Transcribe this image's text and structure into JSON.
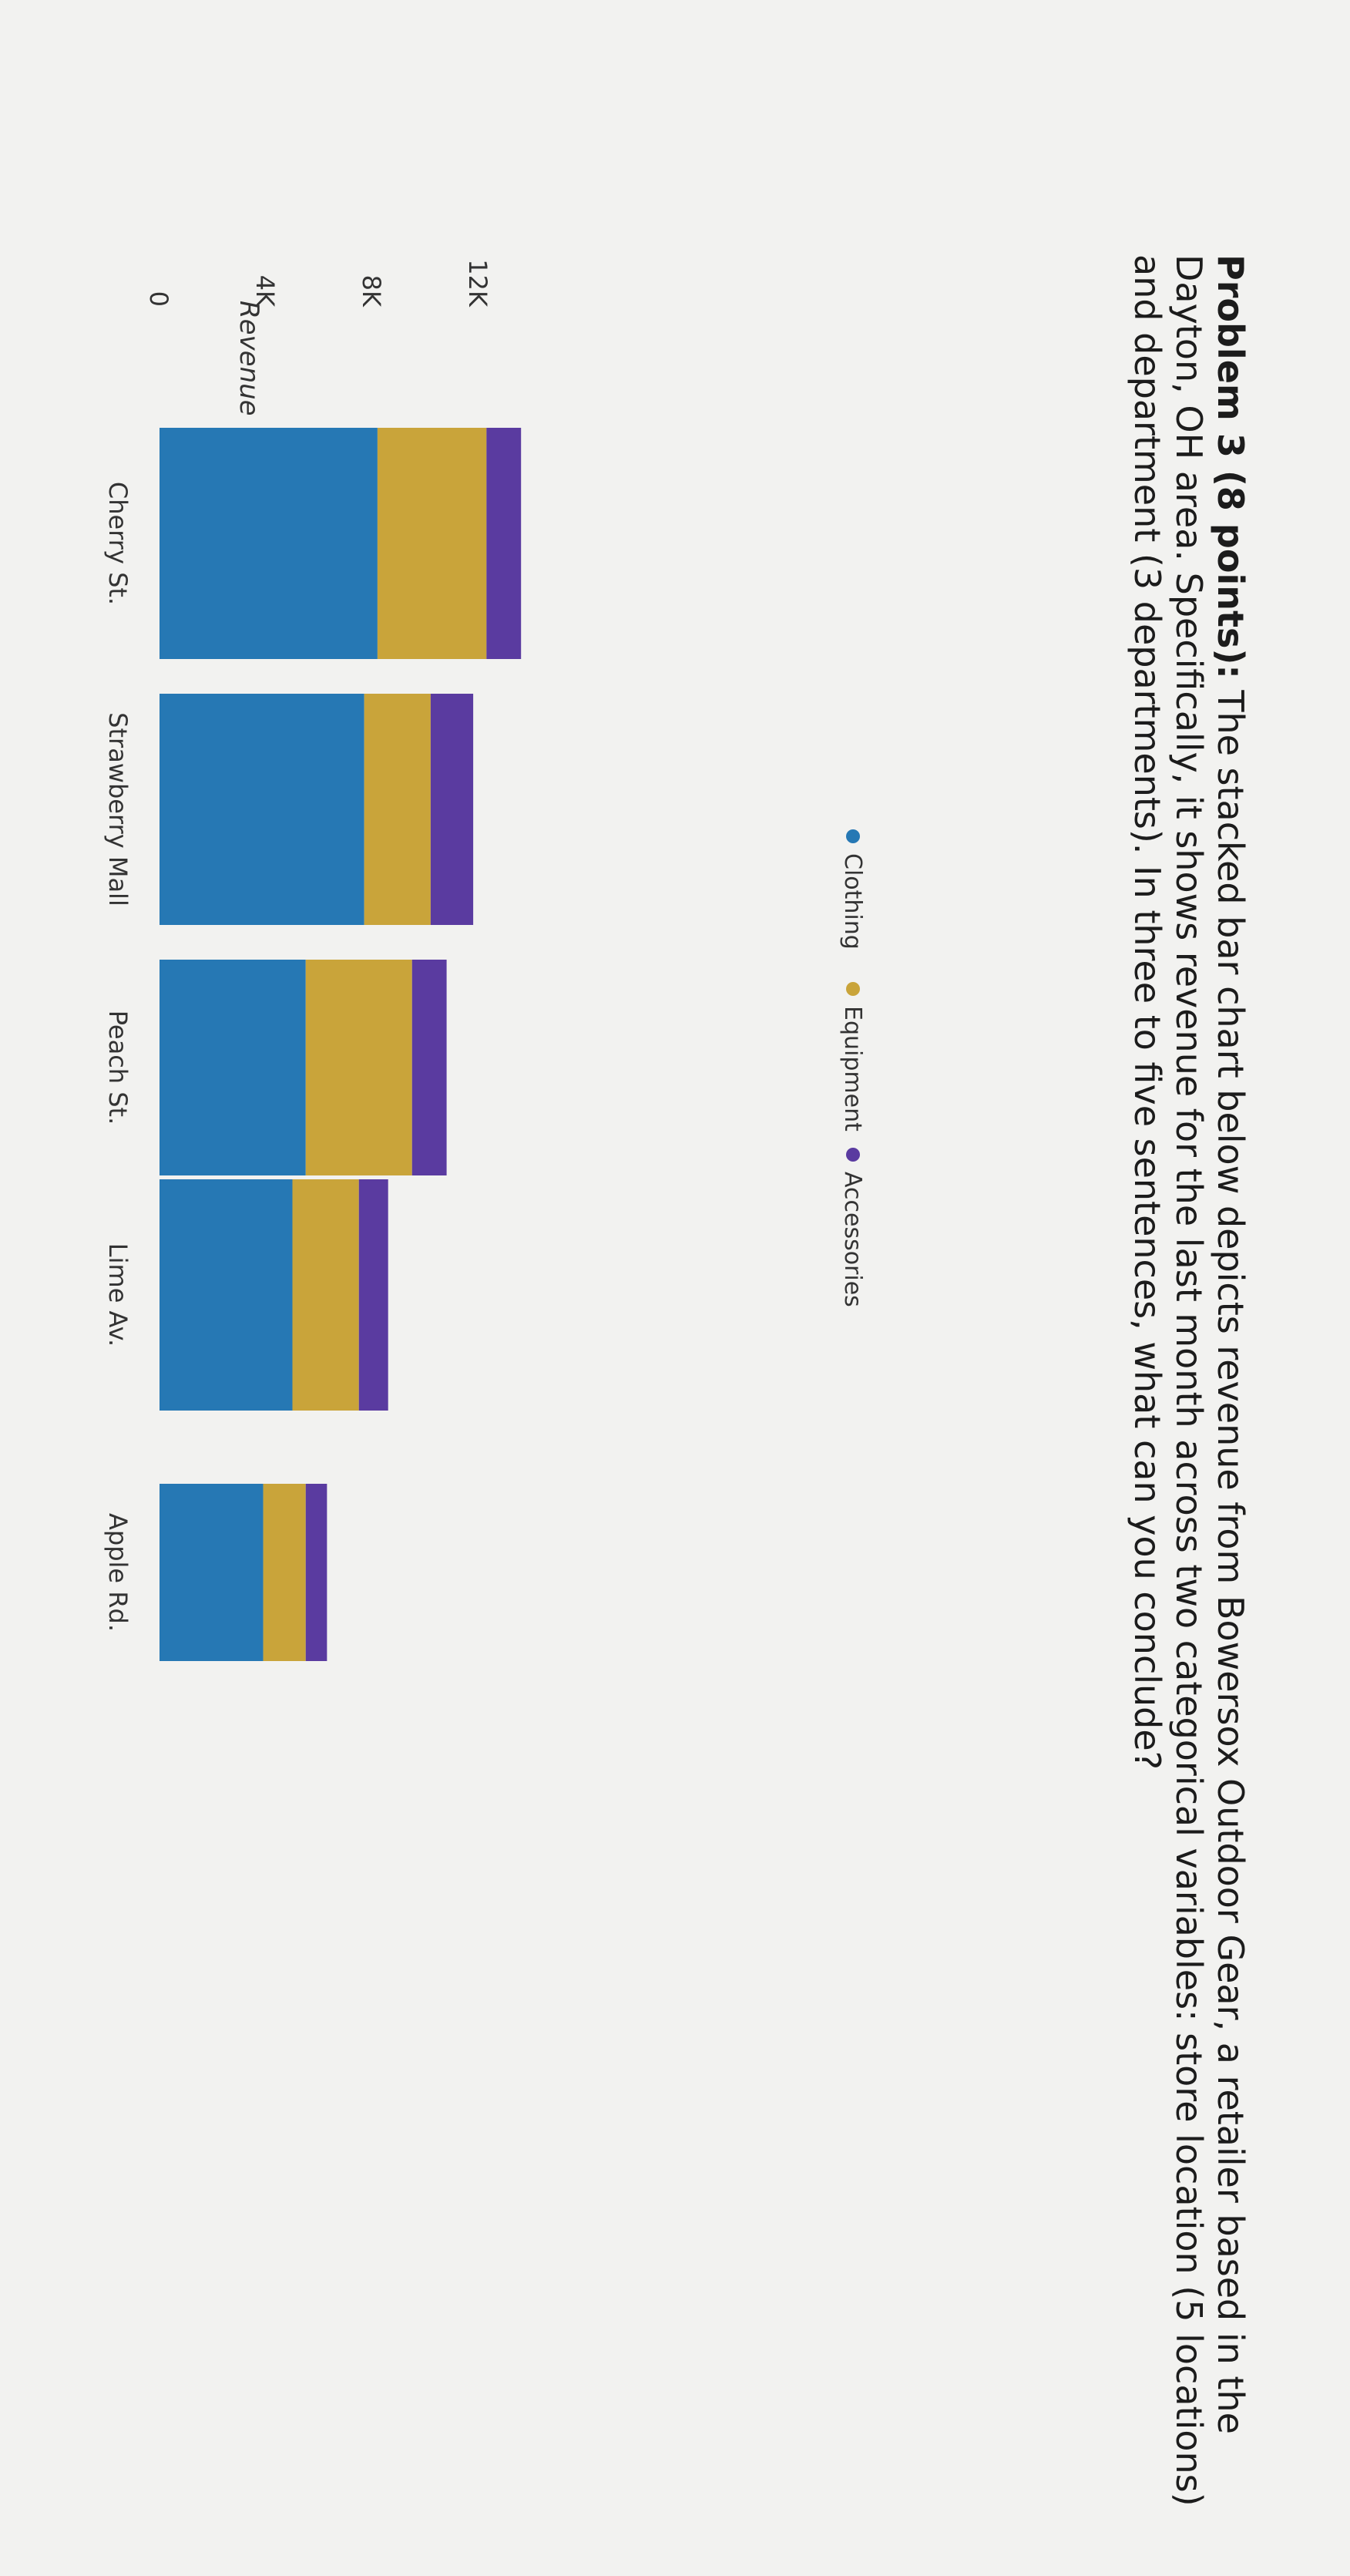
{
  "problem": {
    "heading": "Problem 3 (8 points):",
    "body": "The stacked bar chart below depicts revenue from Bowersox Outdoor Gear, a retailer based in the Dayton, OH area. Specifically, it shows revenue for the last month across two categorical variables: store location (5 locations) and department (3 departments). In three to five sentences, what can you conclude?"
  },
  "chart_data": {
    "type": "bar",
    "stacked": true,
    "categories": [
      "Cherry St.",
      "Strawberry Mall",
      "Peach St.",
      "Lime Av.",
      "Apple Rd."
    ],
    "series": [
      {
        "name": "Clothing",
        "values": [
          8200,
          7700,
          5500,
          5000,
          3900
        ]
      },
      {
        "name": "Equipment",
        "values": [
          4100,
          2500,
          4000,
          2500,
          1600
        ]
      },
      {
        "name": "Accessories",
        "values": [
          1300,
          1600,
          1300,
          1100,
          800
        ]
      }
    ],
    "ylabel": "Revenue",
    "yticks": [
      {
        "value": 0,
        "label": "0"
      },
      {
        "value": 4000,
        "label": "4K"
      },
      {
        "value": 8000,
        "label": "8K"
      },
      {
        "value": 12000,
        "label": "12K"
      }
    ],
    "ylim": [
      0,
      14000
    ],
    "legend_position": "top",
    "colors": {
      "Clothing": "#2678b4",
      "Equipment": "#c9a43a",
      "Accessories": "#5a3ba0"
    }
  }
}
